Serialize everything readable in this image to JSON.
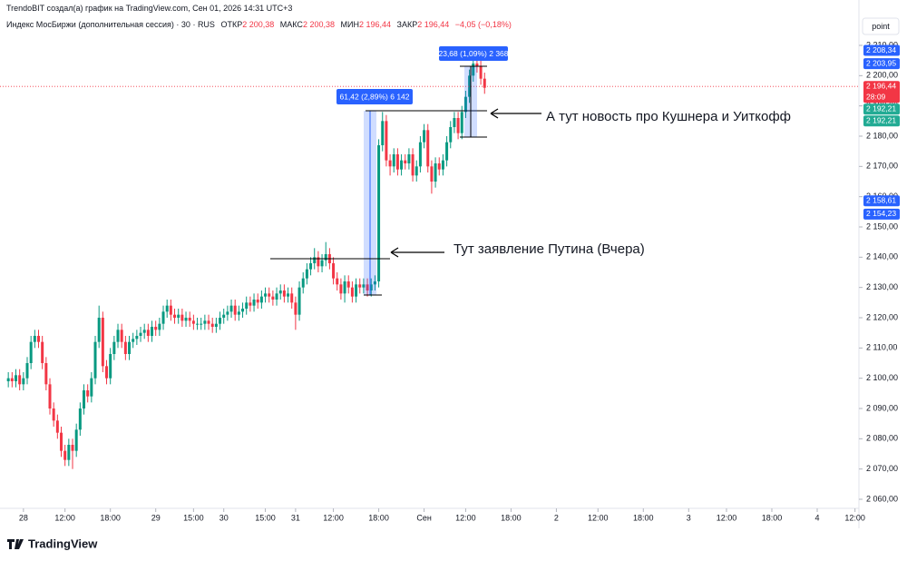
{
  "header": {
    "attribution": "TrendoBIT создал(а) график на TradingView.com, Сен 01, 2026 14:31 UTC+3",
    "symbol": "Индекс МосБиржи (дополнительная сессия) · 30 · RUS",
    "ohlc": [
      {
        "key": "ОТКР",
        "value": "2 200,38"
      },
      {
        "key": "МАКС",
        "value": "2 200,38"
      },
      {
        "key": "МИН",
        "value": "2 196,44"
      },
      {
        "key": "ЗАКР",
        "value": "2 196,44"
      }
    ],
    "change": "−4,05 (−0,18%)",
    "button": "point"
  },
  "footer": {
    "brand": "TradingView"
  },
  "chart_data": {
    "type": "candlestick",
    "up_color": "#089981",
    "down_color": "#f23645",
    "grid": false,
    "open": [
      2099,
      2100,
      2099,
      2101,
      2098,
      2100,
      2105,
      2112,
      2114,
      2112,
      2105,
      2098,
      2090,
      2086,
      2082,
      2076,
      2073,
      2078,
      2076,
      2083,
      2090,
      2096,
      2094,
      2100,
      2112,
      2120,
      2104,
      2100,
      2108,
      2112,
      2116,
      2112,
      2108,
      2112,
      2113,
      2114,
      2115,
      2116,
      2114,
      2117,
      2116,
      2118,
      2122,
      2124,
      2121,
      2120,
      2121,
      2119,
      2120,
      2119,
      2118,
      2118,
      2118,
      2119,
      2118,
      2117,
      2118,
      2120,
      2121,
      2122,
      2124,
      2121,
      2122,
      2123,
      2125,
      2124,
      2126,
      2125,
      2127,
      2128,
      2127,
      2126,
      2128,
      2129,
      2127,
      2128,
      2125,
      2121,
      2130,
      2133,
      2136,
      2138,
      2140,
      2137,
      2139,
      2141,
      2138,
      2133,
      2131,
      2128,
      2132,
      2130,
      2127,
      2131,
      2130,
      2131,
      2129,
      2131,
      2132,
      2177,
      2185,
      2172,
      2170,
      2174,
      2169,
      2172,
      2171,
      2174,
      2167,
      2170,
      2178,
      2182,
      2170,
      2165,
      2171,
      2169,
      2172,
      2178,
      2183,
      2186,
      2181,
      2188,
      2193,
      2200,
      2204,
      2203,
      2199
    ],
    "high": [
      2102,
      2102,
      2103,
      2103,
      2102,
      2107,
      2114,
      2116,
      2116,
      2114,
      2107,
      2100,
      2092,
      2088,
      2084,
      2078,
      2080,
      2080,
      2085,
      2092,
      2098,
      2098,
      2102,
      2114,
      2124,
      2122,
      2106,
      2110,
      2114,
      2118,
      2118,
      2114,
      2114,
      2115,
      2116,
      2117,
      2118,
      2118,
      2119,
      2119,
      2120,
      2124,
      2126,
      2126,
      2123,
      2123,
      2123,
      2122,
      2122,
      2121,
      2120,
      2120,
      2121,
      2121,
      2120,
      2120,
      2122,
      2123,
      2124,
      2126,
      2126,
      2124,
      2125,
      2127,
      2127,
      2128,
      2128,
      2129,
      2130,
      2130,
      2129,
      2130,
      2131,
      2131,
      2130,
      2130,
      2127,
      2132,
      2135,
      2138,
      2140,
      2143,
      2142,
      2141,
      2145,
      2143,
      2140,
      2135,
      2133,
      2134,
      2134,
      2132,
      2133,
      2133,
      2133,
      2133,
      2133,
      2134,
      2179,
      2188,
      2187,
      2174,
      2176,
      2176,
      2174,
      2174,
      2176,
      2176,
      2172,
      2180,
      2184,
      2184,
      2172,
      2173,
      2173,
      2174,
      2180,
      2185,
      2188,
      2188,
      2190,
      2195,
      2202,
      2205,
      2206,
      2205,
      2201
    ],
    "low": [
      2097,
      2097,
      2097,
      2096,
      2096,
      2098,
      2103,
      2110,
      2110,
      2103,
      2096,
      2088,
      2084,
      2080,
      2074,
      2071,
      2071,
      2070,
      2074,
      2081,
      2088,
      2092,
      2092,
      2098,
      2110,
      2102,
      2098,
      2098,
      2106,
      2110,
      2110,
      2106,
      2106,
      2110,
      2111,
      2112,
      2113,
      2112,
      2112,
      2114,
      2114,
      2116,
      2120,
      2119,
      2118,
      2118,
      2117,
      2117,
      2117,
      2116,
      2116,
      2116,
      2116,
      2116,
      2115,
      2115,
      2116,
      2118,
      2119,
      2120,
      2119,
      2119,
      2120,
      2121,
      2122,
      2122,
      2123,
      2123,
      2125,
      2125,
      2124,
      2124,
      2126,
      2125,
      2125,
      2123,
      2116,
      2119,
      2128,
      2131,
      2134,
      2136,
      2135,
      2135,
      2137,
      2136,
      2131,
      2129,
      2126,
      2125,
      2128,
      2125,
      2125,
      2128,
      2128,
      2127,
      2127,
      2129,
      2130,
      2175,
      2170,
      2167,
      2168,
      2167,
      2167,
      2169,
      2169,
      2165,
      2165,
      2168,
      2176,
      2168,
      2161,
      2163,
      2167,
      2167,
      2170,
      2176,
      2181,
      2179,
      2179,
      2186,
      2191,
      2198,
      2201,
      2197,
      2194
    ],
    "close": [
      2100,
      2099,
      2101,
      2098,
      2100,
      2105,
      2112,
      2114,
      2112,
      2105,
      2098,
      2090,
      2086,
      2082,
      2076,
      2073,
      2078,
      2076,
      2083,
      2090,
      2096,
      2094,
      2100,
      2112,
      2120,
      2104,
      2100,
      2108,
      2112,
      2116,
      2112,
      2108,
      2112,
      2113,
      2114,
      2115,
      2116,
      2114,
      2117,
      2116,
      2118,
      2122,
      2124,
      2121,
      2120,
      2121,
      2119,
      2120,
      2119,
      2118,
      2118,
      2118,
      2119,
      2118,
      2117,
      2118,
      2120,
      2121,
      2122,
      2124,
      2121,
      2122,
      2123,
      2125,
      2124,
      2126,
      2125,
      2127,
      2128,
      2127,
      2126,
      2128,
      2129,
      2127,
      2128,
      2125,
      2121,
      2130,
      2133,
      2136,
      2138,
      2140,
      2137,
      2139,
      2141,
      2138,
      2133,
      2131,
      2128,
      2132,
      2130,
      2127,
      2131,
      2130,
      2131,
      2129,
      2131,
      2132,
      2177,
      2185,
      2172,
      2170,
      2174,
      2169,
      2172,
      2171,
      2174,
      2167,
      2170,
      2178,
      2182,
      2170,
      2165,
      2171,
      2169,
      2172,
      2178,
      2183,
      2186,
      2181,
      2188,
      2193,
      2200,
      2204,
      2203,
      2199,
      2196
    ],
    "ylim": [
      2057,
      2216
    ],
    "yticks": [
      {
        "value": 2060,
        "label": "2 060,00"
      },
      {
        "value": 2070,
        "label": "2 070,00"
      },
      {
        "value": 2080,
        "label": "2 080,00"
      },
      {
        "value": 2090,
        "label": "2 090,00"
      },
      {
        "value": 2100,
        "label": "2 100,00"
      },
      {
        "value": 2110,
        "label": "2 110,00"
      },
      {
        "value": 2120,
        "label": "2 120,00"
      },
      {
        "value": 2130,
        "label": "2 130,00"
      },
      {
        "value": 2140,
        "label": "2 140,00"
      },
      {
        "value": 2150,
        "label": "2 150,00"
      },
      {
        "value": 2160,
        "label": "2 160,00"
      },
      {
        "value": 2170,
        "label": "2 170,00"
      },
      {
        "value": 2180,
        "label": "2 180,00"
      },
      {
        "value": 2190,
        "label": "2 190,00"
      },
      {
        "value": 2200,
        "label": "2 200,00"
      },
      {
        "value": 2210,
        "label": "2 210,00"
      }
    ],
    "xlim": [
      -1,
      226
    ],
    "xticks": [
      {
        "value": 4,
        "label": "28"
      },
      {
        "value": 15,
        "label": "12:00"
      },
      {
        "value": 27,
        "label": "18:00"
      },
      {
        "value": 39,
        "label": "29"
      },
      {
        "value": 49,
        "label": "15:00"
      },
      {
        "value": 57,
        "label": "30"
      },
      {
        "value": 68,
        "label": "15:00"
      },
      {
        "value": 76,
        "label": "31"
      },
      {
        "value": 86,
        "label": "12:00"
      },
      {
        "value": 98,
        "label": "18:00"
      },
      {
        "value": 110,
        "label": "Сен"
      },
      {
        "value": 121,
        "label": "12:00"
      },
      {
        "value": 133,
        "label": "18:00"
      },
      {
        "value": 145,
        "label": "2"
      },
      {
        "value": 156,
        "label": "12:00"
      },
      {
        "value": 168,
        "label": "18:00"
      },
      {
        "value": 180,
        "label": "3"
      },
      {
        "value": 190,
        "label": "12:00"
      },
      {
        "value": 202,
        "label": "18:00"
      },
      {
        "value": 214,
        "label": "4"
      },
      {
        "value": 224,
        "label": "12:00"
      }
    ],
    "price_labels": [
      {
        "value": 2208.34,
        "label": "2 208,34",
        "color": "#2962ff"
      },
      {
        "value": 2203.95,
        "label": "2 203,95",
        "color": "#2962ff"
      },
      {
        "value": 2196.44,
        "label": "2 196,44",
        "sublabel": "28:09",
        "color": "#f23645",
        "dotted_line": true
      },
      {
        "value": 2192.21,
        "label": "2 192,21",
        "color": "#22ab94"
      },
      {
        "value": 2192.21,
        "label": "2 192,21",
        "color": "#22ab94"
      },
      {
        "value": 2158.61,
        "label": "2 158,61",
        "color": "#2962ff"
      },
      {
        "value": 2154.23,
        "label": "2 154,23",
        "color": "#2962ff"
      }
    ],
    "annotations": {
      "measure_1": "61,42 (2,89%) 6 142",
      "measure_2": "23,68 (1,09%) 2 368",
      "note_1": "А тут новость про Кушнера и Уиткофф",
      "note_2": "Тут заявление Путина (Вчера)"
    }
  }
}
